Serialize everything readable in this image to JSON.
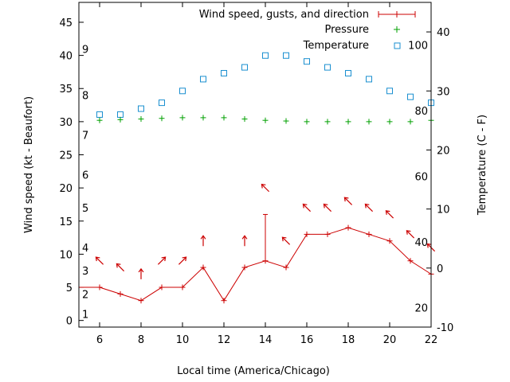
{
  "chart_data": {
    "type": "line",
    "title": "",
    "xlabel": "Local time (America/Chicago)",
    "ylabel_left": "Wind speed (kt - Beaufort)",
    "ylabel_right": "Temperature (C - F)",
    "xlim": [
      5,
      22
    ],
    "ylim_left": [
      -1,
      48
    ],
    "ylim_right": [
      -10,
      45
    ],
    "x_ticks": [
      6,
      8,
      10,
      12,
      14,
      16,
      18,
      20,
      22
    ],
    "y_left_ticks": [
      0,
      5,
      10,
      15,
      20,
      25,
      30,
      35,
      40,
      45
    ],
    "y_right_ticks": [
      -10,
      0,
      10,
      20,
      30,
      40
    ],
    "beaufort_labels": [
      {
        "label": "1",
        "kt": 1
      },
      {
        "label": "2",
        "kt": 4
      },
      {
        "label": "3",
        "kt": 7.5
      },
      {
        "label": "4",
        "kt": 11
      },
      {
        "label": "5",
        "kt": 17
      },
      {
        "label": "6",
        "kt": 22
      },
      {
        "label": "7",
        "kt": 28
      },
      {
        "label": "8",
        "kt": 34
      },
      {
        "label": "9",
        "kt": 41
      }
    ],
    "fahrenheit_labels": [
      {
        "label": "20",
        "f": 20
      },
      {
        "label": "40",
        "f": 40
      },
      {
        "label": "60",
        "f": 60
      },
      {
        "label": "80",
        "f": 80
      },
      {
        "label": "100",
        "f": 100
      }
    ],
    "legend_position": "top-right",
    "grid": false,
    "series": [
      {
        "name": "Wind speed, gusts, and direction",
        "color": "#cc0000",
        "x": [
          5,
          6,
          7,
          8,
          9,
          10,
          11,
          12,
          13,
          14,
          15,
          16,
          17,
          18,
          19,
          20,
          21,
          22
        ],
        "values": [
          5,
          5,
          4,
          3,
          5,
          5,
          8,
          3,
          8,
          9,
          8,
          13,
          13,
          14,
          13,
          12,
          9,
          7
        ],
        "gusts": [
          {
            "x": 14,
            "value": 16
          }
        ],
        "direction_marks": [
          {
            "x": 6,
            "y": 9,
            "direction": "nw"
          },
          {
            "x": 7,
            "y": 8,
            "direction": "nw"
          },
          {
            "x": 8,
            "y": 7,
            "direction": "n"
          },
          {
            "x": 9,
            "y": 9,
            "direction": "ne"
          },
          {
            "x": 10,
            "y": 9,
            "direction": "ne"
          },
          {
            "x": 11,
            "y": 12,
            "direction": "n"
          },
          {
            "x": 13,
            "y": 12,
            "direction": "n"
          },
          {
            "x": 14,
            "y": 20,
            "direction": "nw"
          },
          {
            "x": 15,
            "y": 12,
            "direction": "nw"
          },
          {
            "x": 16,
            "y": 17,
            "direction": "nw"
          },
          {
            "x": 17,
            "y": 17,
            "direction": "nw"
          },
          {
            "x": 18,
            "y": 18,
            "direction": "nw"
          },
          {
            "x": 19,
            "y": 17,
            "direction": "nw"
          },
          {
            "x": 20,
            "y": 16,
            "direction": "nw"
          },
          {
            "x": 21,
            "y": 13,
            "direction": "nw"
          },
          {
            "x": 22,
            "y": 11,
            "direction": "nw"
          }
        ]
      },
      {
        "name": "Pressure",
        "color": "#00a000",
        "axis": "left",
        "x": [
          6,
          7,
          8,
          9,
          10,
          11,
          12,
          13,
          14,
          15,
          16,
          17,
          18,
          19,
          20,
          21,
          22
        ],
        "values": [
          30.2,
          30.3,
          30.4,
          30.5,
          30.6,
          30.6,
          30.6,
          30.4,
          30.2,
          30.1,
          30.0,
          30.0,
          30.0,
          30.0,
          30.0,
          30.0,
          30.2
        ]
      },
      {
        "name": "Temperature",
        "color": "#1a8fd0",
        "axis": "right",
        "x": [
          6,
          7,
          8,
          9,
          10,
          11,
          12,
          13,
          14,
          15,
          16,
          17,
          18,
          19,
          20,
          21,
          22
        ],
        "values": [
          26,
          26,
          27,
          28,
          30,
          32,
          33,
          34,
          36,
          36,
          35,
          34,
          33,
          32,
          30,
          29,
          28
        ]
      }
    ]
  }
}
